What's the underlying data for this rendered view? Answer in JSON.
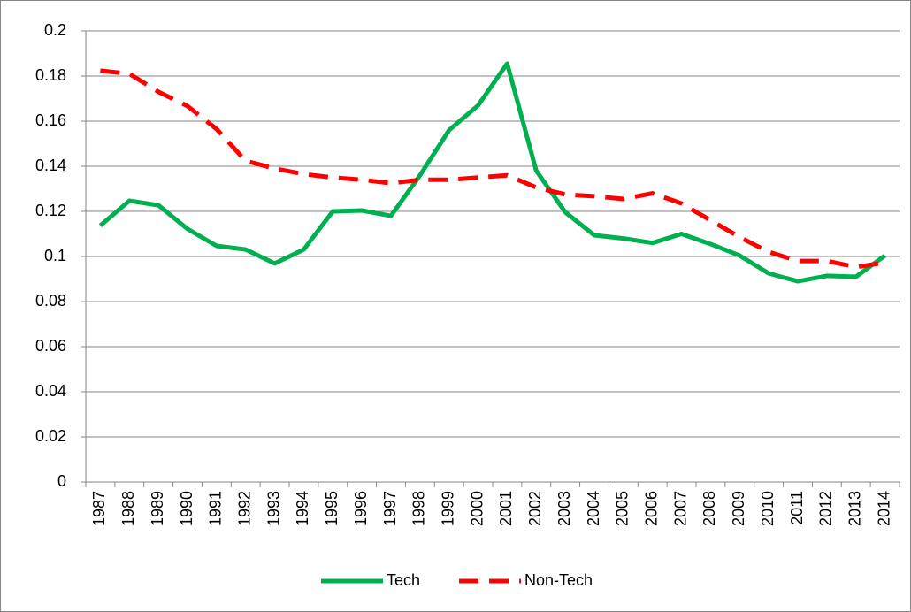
{
  "chart_data": {
    "type": "line",
    "categories": [
      "1987",
      "1988",
      "1989",
      "1990",
      "1991",
      "1992",
      "1993",
      "1994",
      "1995",
      "1996",
      "1997",
      "1998",
      "1999",
      "2000",
      "2001",
      "2002",
      "2003",
      "2004",
      "2005",
      "2006",
      "2007",
      "2008",
      "2009",
      "2010",
      "2011",
      "2012",
      "2013",
      "2014"
    ],
    "series": [
      {
        "name": "Tech",
        "color": "#00b050",
        "style": "solid",
        "values": [
          0.1137,
          0.1247,
          0.1227,
          0.1122,
          0.1047,
          0.1031,
          0.0969,
          0.1031,
          0.12,
          0.1204,
          0.118,
          0.136,
          0.156,
          0.167,
          0.1855,
          0.138,
          0.1196,
          0.1094,
          0.108,
          0.106,
          0.11,
          0.1055,
          0.1004,
          0.0925,
          0.089,
          0.0914,
          0.091,
          0.1004
        ]
      },
      {
        "name": "Non-Tech",
        "color": "#ff0000",
        "style": "dashed",
        "values": [
          0.1824,
          0.181,
          0.173,
          0.1667,
          0.1565,
          0.1424,
          0.139,
          0.1365,
          0.135,
          0.134,
          0.1325,
          0.134,
          0.134,
          0.135,
          0.136,
          0.1306,
          0.1275,
          0.1267,
          0.1255,
          0.128,
          0.1235,
          0.116,
          0.1086,
          0.102,
          0.098,
          0.098,
          0.0953,
          0.0973
        ]
      }
    ],
    "ylim": [
      0,
      0.2
    ],
    "yticks": [
      0,
      0.02,
      0.04,
      0.06,
      0.08,
      0.1,
      0.12,
      0.14,
      0.16,
      0.18,
      0.2
    ],
    "grid": true,
    "legend": "bottom"
  }
}
